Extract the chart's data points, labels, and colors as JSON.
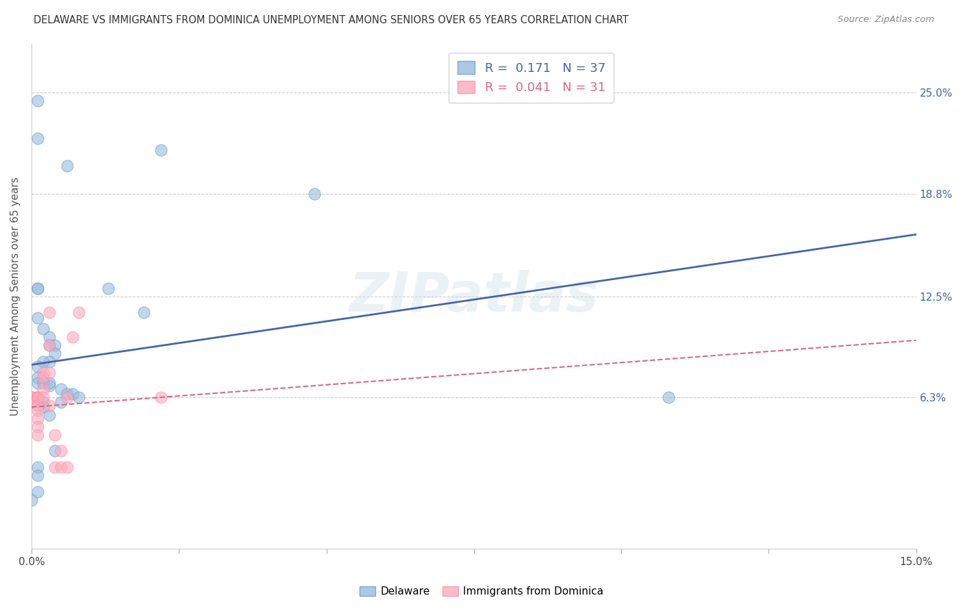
{
  "title": "DELAWARE VS IMMIGRANTS FROM DOMINICA UNEMPLOYMENT AMONG SENIORS OVER 65 YEARS CORRELATION CHART",
  "source": "Source: ZipAtlas.com",
  "ylabel": "Unemployment Among Seniors over 65 years",
  "xlim": [
    0.0,
    0.15
  ],
  "ylim": [
    -0.03,
    0.28
  ],
  "ytick_values": [
    0.063,
    0.125,
    0.188,
    0.25
  ],
  "ytick_labels": [
    "6.3%",
    "12.5%",
    "18.8%",
    "25.0%"
  ],
  "blue_scatter_x": [
    0.001,
    0.013,
    0.006,
    0.022,
    0.001,
    0.001,
    0.001,
    0.002,
    0.003,
    0.003,
    0.004,
    0.004,
    0.003,
    0.002,
    0.001,
    0.001,
    0.001,
    0.002,
    0.003,
    0.005,
    0.006,
    0.007,
    0.008,
    0.005,
    0.002,
    0.002,
    0.003,
    0.019,
    0.048,
    0.003,
    0.001,
    0.001,
    0.001,
    0.004,
    0.001,
    0.108,
    0.0
  ],
  "blue_scatter_y": [
    0.13,
    0.13,
    0.205,
    0.215,
    0.222,
    0.13,
    0.112,
    0.105,
    0.1,
    0.095,
    0.095,
    0.09,
    0.085,
    0.085,
    0.082,
    0.075,
    0.072,
    0.072,
    0.07,
    0.068,
    0.065,
    0.065,
    0.063,
    0.06,
    0.06,
    0.057,
    0.052,
    0.115,
    0.188,
    0.072,
    0.02,
    0.015,
    0.005,
    0.03,
    0.245,
    0.063,
    0.0
  ],
  "pink_scatter_x": [
    0.0,
    0.0,
    0.0,
    0.0,
    0.0,
    0.0,
    0.001,
    0.001,
    0.001,
    0.001,
    0.001,
    0.001,
    0.001,
    0.001,
    0.002,
    0.002,
    0.002,
    0.002,
    0.003,
    0.003,
    0.003,
    0.003,
    0.004,
    0.004,
    0.005,
    0.005,
    0.006,
    0.006,
    0.007,
    0.008,
    0.022
  ],
  "pink_scatter_y": [
    0.063,
    0.063,
    0.063,
    0.063,
    0.063,
    0.06,
    0.063,
    0.063,
    0.063,
    0.058,
    0.055,
    0.05,
    0.045,
    0.04,
    0.078,
    0.075,
    0.068,
    0.063,
    0.115,
    0.095,
    0.078,
    0.058,
    0.04,
    0.02,
    0.03,
    0.02,
    0.063,
    0.02,
    0.1,
    0.115,
    0.063
  ],
  "blue_line_x": [
    0.0,
    0.15
  ],
  "blue_line_y": [
    0.083,
    0.163
  ],
  "pink_line_x": [
    0.0,
    0.15
  ],
  "pink_line_y": [
    0.057,
    0.098
  ],
  "blue_fill_color": "#99BBDD",
  "blue_edge_color": "#6699CC",
  "pink_fill_color": "#FFAABB",
  "pink_edge_color": "#FF88AA",
  "blue_line_color": "#4466AA",
  "pink_line_color": "#DD6688",
  "legend_r_blue": "0.171",
  "legend_n_blue": "37",
  "legend_r_pink": "0.041",
  "legend_n_pink": "31",
  "legend_label_blue": "Delaware",
  "legend_label_pink": "Immigrants from Dominica",
  "watermark": "ZIPatlas",
  "bg_color": "#ffffff",
  "grid_color": "#cccccc"
}
